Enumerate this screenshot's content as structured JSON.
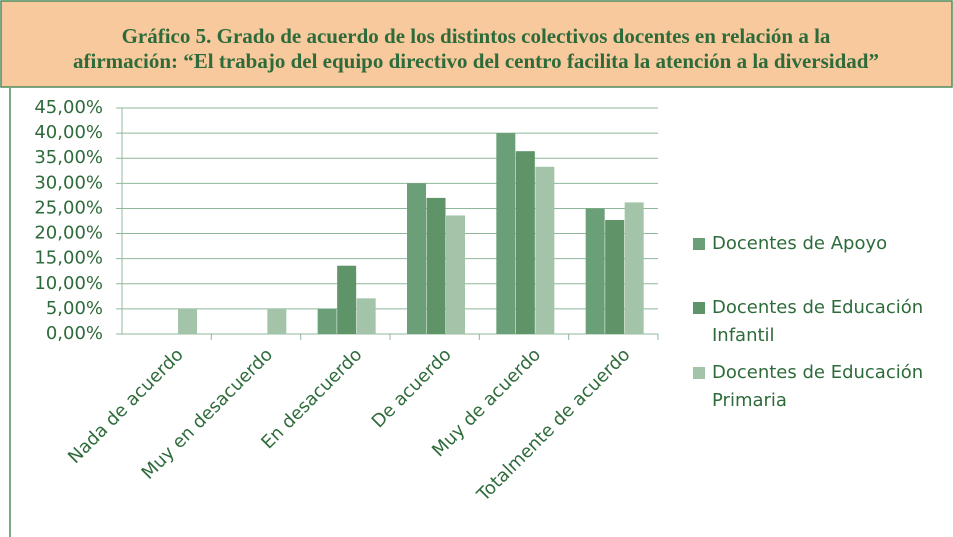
{
  "chart_data": {
    "type": "bar",
    "title": [
      "Gráfico 5. Grado de acuerdo de los distintos colectivos docentes en relación a la",
      "afirmación: “El trabajo del equipo directivo del centro facilita la atención a la diversidad”"
    ],
    "categories": [
      "Nada de acuerdo",
      "Muy en desacuerdo",
      "En desacuerdo",
      "De acuerdo",
      "Muy de acuerdo",
      "Totalmente de acuerdo"
    ],
    "series": [
      {
        "name": "Docentes de Apoyo",
        "color": "#6b9f78",
        "values": [
          0,
          0,
          5,
          30,
          40,
          25
        ]
      },
      {
        "name": "Docentes de Educación Infantil",
        "color": "#5e9468",
        "values": [
          0,
          0,
          13.6,
          27.1,
          36.4,
          22.7
        ]
      },
      {
        "name": "Docentes de Educación Primaria",
        "color": "#a3c4a8",
        "values": [
          5,
          5,
          7.1,
          23.6,
          33.3,
          26.2
        ]
      }
    ],
    "ylim": [
      0,
      45
    ],
    "yticks": [
      {
        "value": 0,
        "label": "0,00%"
      },
      {
        "value": 5,
        "label": "5,00%"
      },
      {
        "value": 10,
        "label": "10,00%"
      },
      {
        "value": 15,
        "label": "15,00%"
      },
      {
        "value": 20,
        "label": "20,00%"
      },
      {
        "value": 25,
        "label": "25,00%"
      },
      {
        "value": 30,
        "label": "30,00%"
      },
      {
        "value": 35,
        "label": "35,00%"
      },
      {
        "value": 40,
        "label": "40,00%"
      },
      {
        "value": 45,
        "label": "45,00%"
      }
    ],
    "grid": true,
    "legend": "right"
  }
}
